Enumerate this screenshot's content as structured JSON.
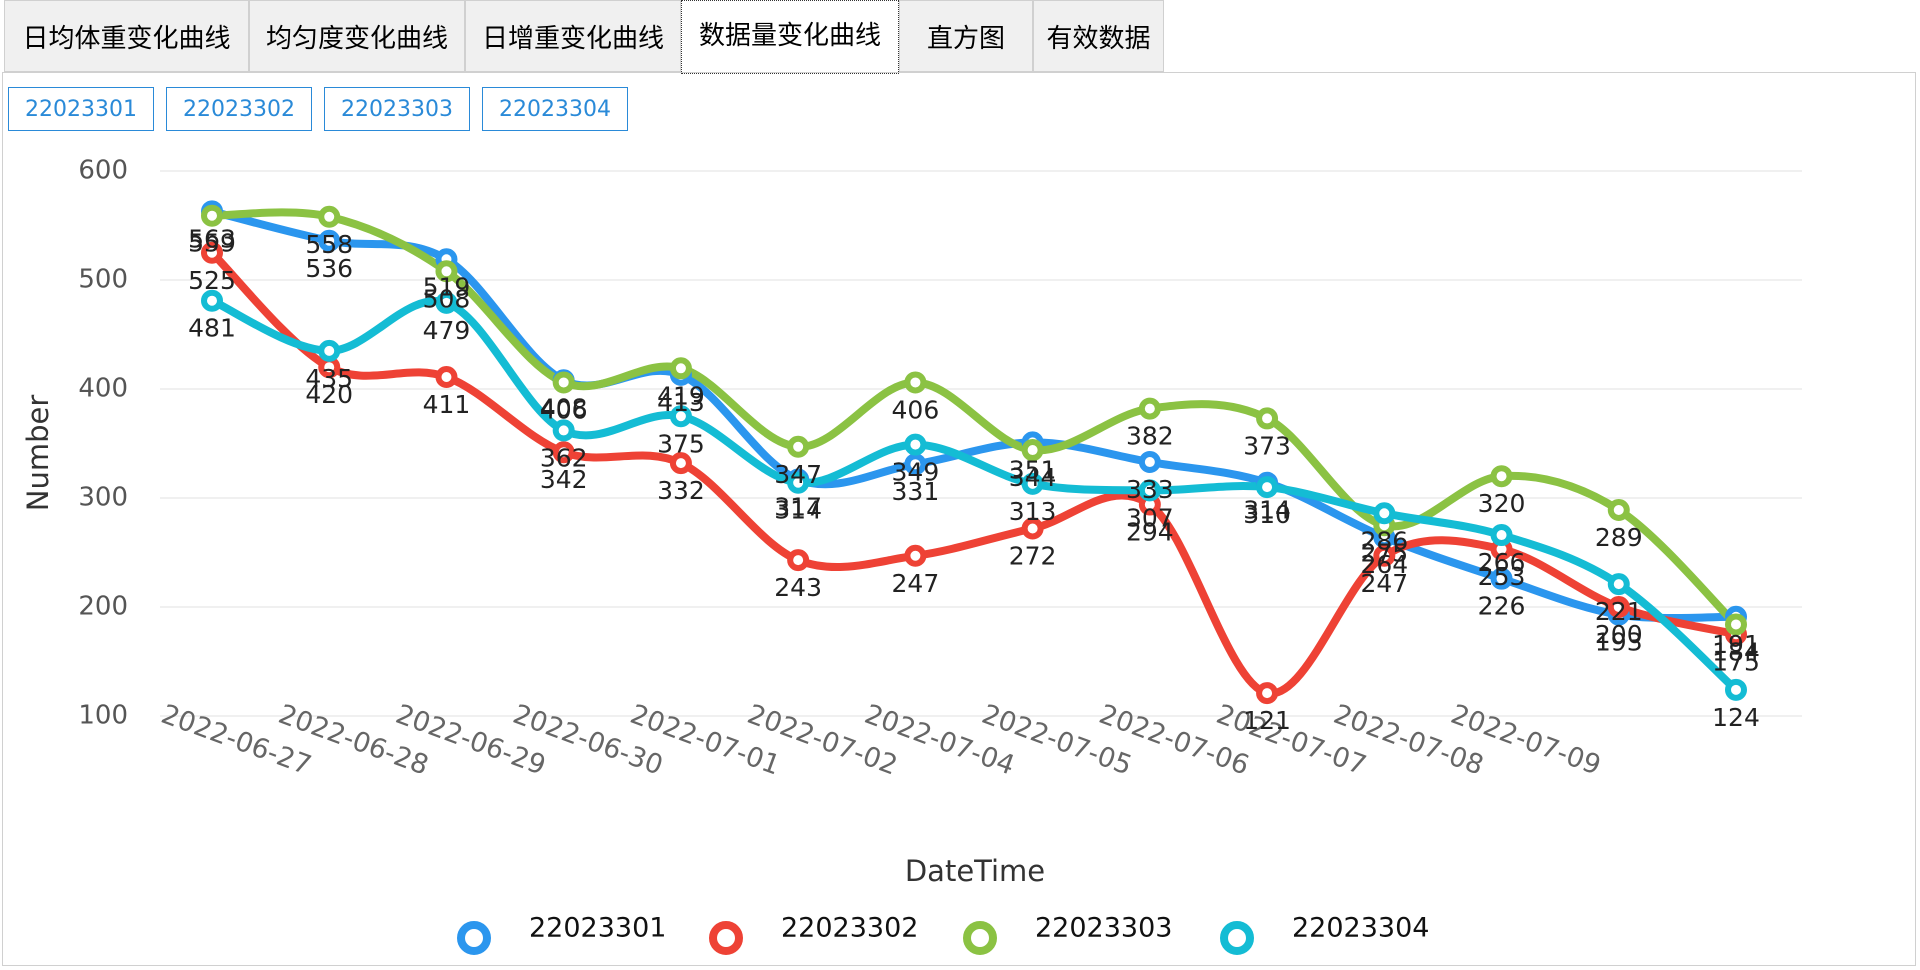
{
  "tabs": [
    "日均体重变化曲线",
    "均匀度变化曲线",
    "日增重变化曲线",
    "数据量变化曲线",
    "直方图",
    "有效数据"
  ],
  "buttons": [
    "22023301",
    "22023302",
    "22023303",
    "22023304"
  ],
  "chart_data": {
    "type": "line",
    "x_label": "DateTime",
    "y_label": "Number",
    "categories": [
      "2022-06-27",
      "2022-06-28",
      "2022-06-29",
      "2022-06-30",
      "2022-07-01",
      "2022-07-02",
      "2022-07-04",
      "2022-07-05",
      "2022-07-06",
      "2022-07-07",
      "2022-07-08",
      "2022-07-09",
      null,
      null
    ],
    "ylim": [
      100,
      600
    ],
    "yticks": [
      100,
      200,
      300,
      400,
      500,
      600
    ],
    "grid": true,
    "series": [
      {
        "name": "22023301",
        "color": "#2b96ee",
        "values": [
          563,
          536,
          519,
          408,
          413,
          317,
          331,
          351,
          333,
          314,
          264,
          226,
          193,
          191
        ]
      },
      {
        "name": "22023302",
        "color": "#ee4235",
        "values": [
          525,
          420,
          411,
          342,
          332,
          243,
          247,
          272,
          294,
          121,
          247,
          253,
          200,
          175
        ]
      },
      {
        "name": "22023303",
        "color": "#8bc243",
        "values": [
          559,
          558,
          508,
          406,
          419,
          347,
          406,
          344,
          382,
          373,
          275,
          320,
          289,
          184
        ]
      },
      {
        "name": "22023304",
        "color": "#14bcd4",
        "values": [
          481,
          435,
          479,
          362,
          375,
          314,
          349,
          313,
          307,
          310,
          286,
          266,
          221,
          124
        ]
      }
    ]
  }
}
